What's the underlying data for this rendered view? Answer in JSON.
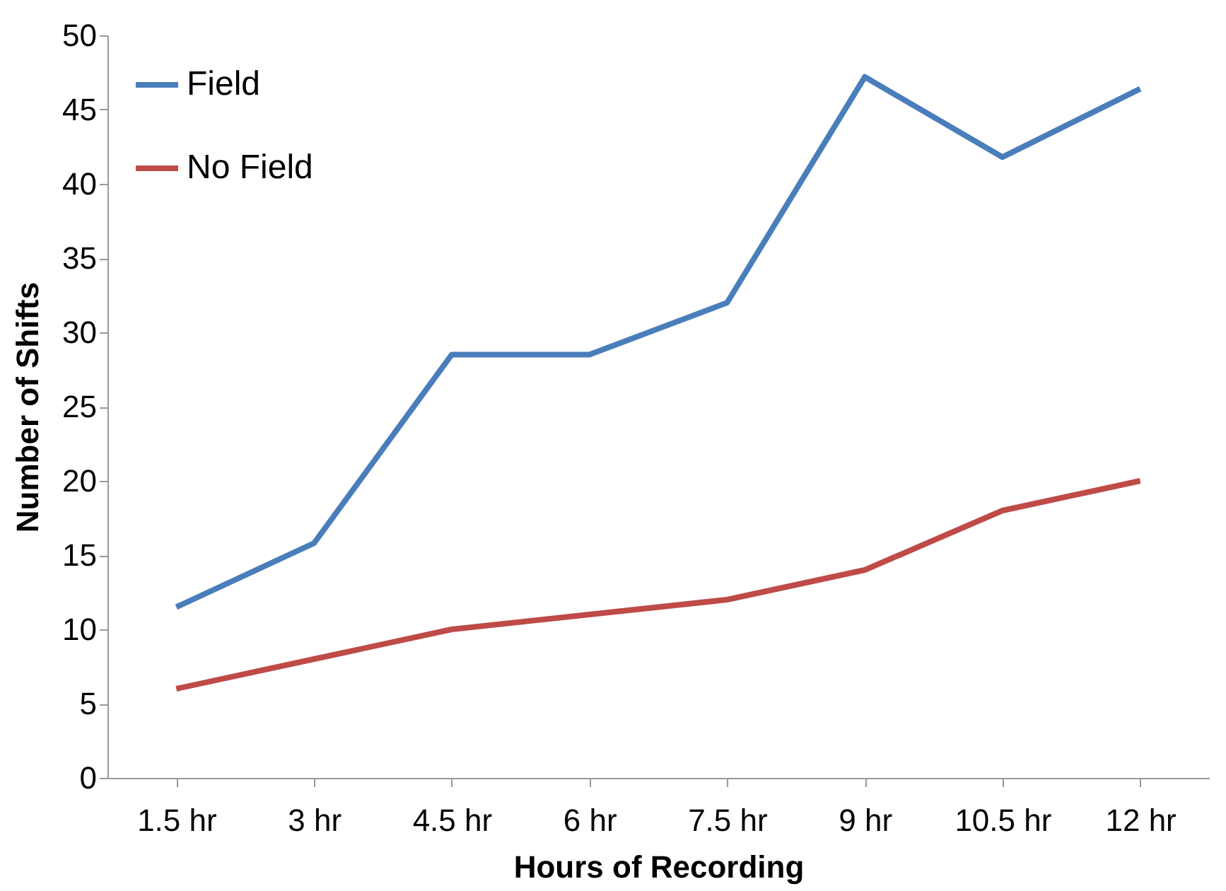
{
  "chart_data": {
    "type": "line",
    "xlabel": "Hours of Recording",
    "ylabel": "Number of Shifts",
    "categories": [
      "1.5 hr",
      "3 hr",
      "4.5 hr",
      "6 hr",
      "7.5 hr",
      "9 hr",
      "10.5 hr",
      "12 hr"
    ],
    "series": [
      {
        "name": "Field",
        "color": "#4a7ebb",
        "values": [
          11.5,
          15.8,
          28.5,
          28.5,
          32,
          47.2,
          41.8,
          46.4
        ]
      },
      {
        "name": "No Field",
        "color": "#be4b48",
        "values": [
          6,
          8,
          10,
          11,
          12,
          14,
          18,
          20
        ]
      }
    ],
    "ylim": [
      0,
      50
    ],
    "yticks": [
      0,
      5,
      10,
      15,
      20,
      25,
      30,
      35,
      40,
      45,
      50
    ],
    "grid": false,
    "legend": "top left",
    "marker": "none",
    "line_style": "solid"
  }
}
